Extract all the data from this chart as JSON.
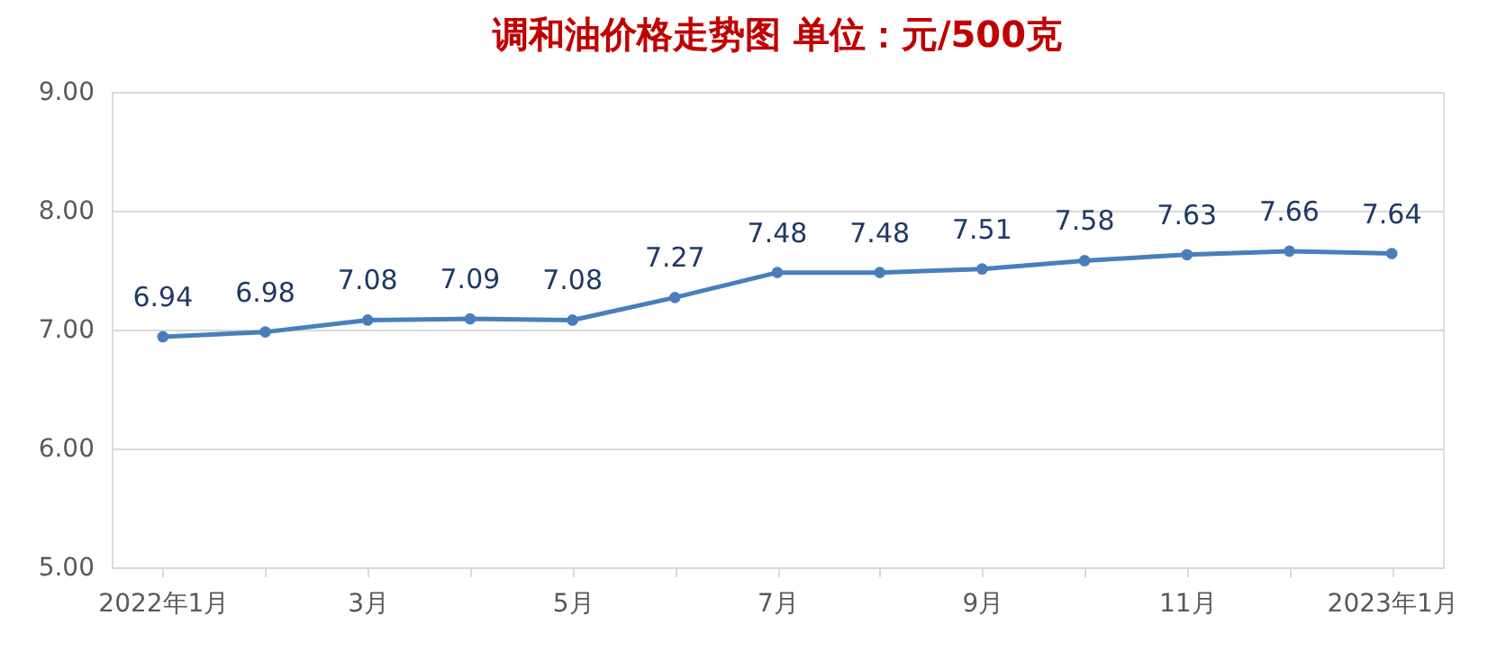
{
  "chart_data": {
    "type": "line",
    "title": "调和油价格走势图    单位：元/500克",
    "categories": [
      "2022年1月",
      null,
      "3月",
      null,
      "5月",
      null,
      "7月",
      null,
      "9月",
      null,
      "11月",
      null,
      "2023年1月"
    ],
    "series": [
      {
        "color": "#4a7ebb",
        "values": [
          6.94,
          6.98,
          7.08,
          7.09,
          7.08,
          7.27,
          7.48,
          7.48,
          7.51,
          7.58,
          7.63,
          7.66,
          7.64
        ]
      }
    ],
    "ylim": [
      5,
      9
    ],
    "yticks": [
      {
        "value": 5,
        "label": "5.00"
      },
      {
        "value": 6,
        "label": "6.00"
      },
      {
        "value": 7,
        "label": "7.00"
      },
      {
        "value": 8,
        "label": "8.00"
      },
      {
        "value": 9,
        "label": "9.00"
      }
    ],
    "grid": "y",
    "legend": false,
    "marker": "circle",
    "line_style": "solid",
    "data_labels": true
  }
}
